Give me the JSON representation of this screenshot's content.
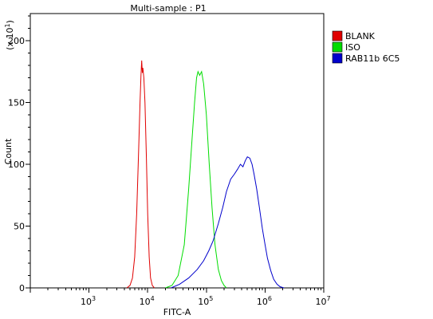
{
  "chart_data": {
    "type": "area",
    "title": "Multi-sample : P1",
    "xlabel": "FITC-A",
    "ylabel": "Count",
    "y_multiplier": "(x 10",
    "y_multiplier_exponent": "1",
    "y_multiplier_close": ")",
    "x_scale": "log",
    "xlim": [
      100,
      10000000
    ],
    "ylim": [
      0,
      222
    ],
    "grid": false,
    "legend_position": "top-right",
    "x_ticks": [
      {
        "value": 1000,
        "base": "10",
        "exp": "3"
      },
      {
        "value": 10000,
        "base": "10",
        "exp": "4"
      },
      {
        "value": 100000,
        "base": "10",
        "exp": "5"
      },
      {
        "value": 1000000,
        "base": "10",
        "exp": "6"
      },
      {
        "value": 10000000,
        "base": "10",
        "exp": "7"
      }
    ],
    "y_ticks": [
      {
        "value": 0,
        "label": "0"
      },
      {
        "value": 50,
        "label": "50"
      },
      {
        "value": 100,
        "label": "100"
      },
      {
        "value": 150,
        "label": "150"
      },
      {
        "value": 200,
        "label": "200"
      }
    ],
    "series": [
      {
        "name": "BLANK",
        "color": "#e00000",
        "points": [
          [
            4400,
            0
          ],
          [
            5000,
            2
          ],
          [
            5500,
            8
          ],
          [
            6000,
            25
          ],
          [
            6500,
            60
          ],
          [
            7000,
            110
          ],
          [
            7400,
            150
          ],
          [
            7700,
            172
          ],
          [
            7900,
            184
          ],
          [
            8100,
            174
          ],
          [
            8300,
            178
          ],
          [
            8600,
            170
          ],
          [
            9000,
            150
          ],
          [
            9500,
            105
          ],
          [
            10000,
            60
          ],
          [
            10600,
            25
          ],
          [
            11200,
            8
          ],
          [
            12000,
            2
          ],
          [
            13000,
            0
          ]
        ]
      },
      {
        "name": "ISO",
        "color": "#00dd00",
        "points": [
          [
            20000,
            0
          ],
          [
            26000,
            2
          ],
          [
            33000,
            10
          ],
          [
            42000,
            35
          ],
          [
            50000,
            80
          ],
          [
            57000,
            120
          ],
          [
            63000,
            150
          ],
          [
            68000,
            170
          ],
          [
            72000,
            175
          ],
          [
            77000,
            172
          ],
          [
            83000,
            175
          ],
          [
            90000,
            165
          ],
          [
            100000,
            140
          ],
          [
            112000,
            100
          ],
          [
            125000,
            65
          ],
          [
            140000,
            35
          ],
          [
            160000,
            15
          ],
          [
            180000,
            6
          ],
          [
            200000,
            2
          ],
          [
            220000,
            0
          ]
        ]
      },
      {
        "name": "RAB11b 6C5",
        "color": "#0000cc",
        "points": [
          [
            25000,
            0
          ],
          [
            35000,
            3
          ],
          [
            50000,
            8
          ],
          [
            70000,
            15
          ],
          [
            90000,
            22
          ],
          [
            110000,
            30
          ],
          [
            130000,
            38
          ],
          [
            160000,
            52
          ],
          [
            190000,
            65
          ],
          [
            220000,
            78
          ],
          [
            260000,
            88
          ],
          [
            300000,
            92
          ],
          [
            340000,
            96
          ],
          [
            380000,
            100
          ],
          [
            420000,
            98
          ],
          [
            460000,
            103
          ],
          [
            500000,
            106
          ],
          [
            550000,
            105
          ],
          [
            600000,
            100
          ],
          [
            650000,
            92
          ],
          [
            720000,
            80
          ],
          [
            800000,
            65
          ],
          [
            900000,
            48
          ],
          [
            1000000,
            35
          ],
          [
            1100000,
            24
          ],
          [
            1250000,
            14
          ],
          [
            1400000,
            7
          ],
          [
            1600000,
            3
          ],
          [
            1800000,
            1
          ],
          [
            2100000,
            0
          ]
        ]
      }
    ]
  }
}
